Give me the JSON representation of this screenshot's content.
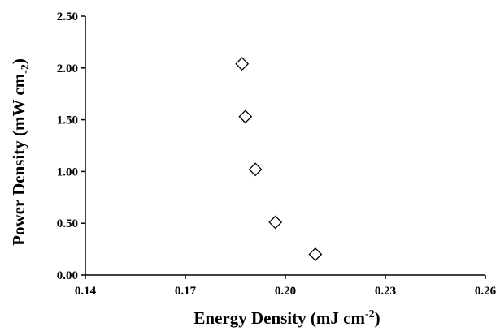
{
  "chart_data": {
    "type": "scatter",
    "xlabel": {
      "main": "Energy Density (mJ cm",
      "sup": "-2",
      "close": ")"
    },
    "ylabel": {
      "main": "Power Density (mW cm",
      "sub": "-2",
      "close": ")"
    },
    "xlim": [
      0.14,
      0.26
    ],
    "ylim": [
      0.0,
      2.5
    ],
    "x_ticks": [
      0.14,
      0.17,
      0.2,
      0.23,
      0.26
    ],
    "x_tick_labels": [
      "0.14",
      "0.17",
      "0.20",
      "0.23",
      "0.26"
    ],
    "y_ticks": [
      0.0,
      0.5,
      1.0,
      1.5,
      2.0,
      2.5
    ],
    "y_tick_labels": [
      "0.00",
      "0.50",
      "1.00",
      "1.50",
      "2.00",
      "2.50"
    ],
    "grid": false,
    "legend": "none",
    "marker": "open-diamond",
    "colors": {
      "marker_stroke": "#000000",
      "marker_fill": "#ffffff",
      "axis": "#000000"
    },
    "series": [
      {
        "x": [
          0.187,
          0.188,
          0.191,
          0.197,
          0.209
        ],
        "y": [
          2.04,
          1.53,
          1.02,
          0.51,
          0.2
        ]
      }
    ]
  }
}
